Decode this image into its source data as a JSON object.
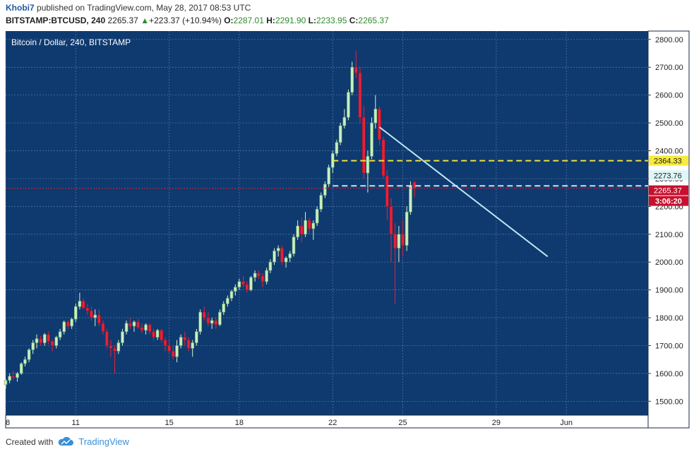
{
  "header": {
    "author": "Khobi7",
    "published": "published on TradingView.com, May 28, 2017 08:53 UTC",
    "symbol": "BITSTAMP:BTCUSD, 240",
    "last": "2265.37",
    "change_arrow": "▲",
    "change": "+223.37 (+10.94%)",
    "o_label": "O:",
    "o_value": "2287.01",
    "h_label": "H:",
    "h_value": "2291.90",
    "l_label": "L:",
    "l_value": "2233.95",
    "c_label": "C:",
    "c_value": "2265.37"
  },
  "legend": "Bitcoin / Dollar, 240, BITSTAMP",
  "footer": {
    "created_with": "Created with",
    "brand": "TradingView",
    "logo_icon": "tradingview-cloud-icon"
  },
  "colors": {
    "background": "#0e3a70",
    "grid": "#5a7aa8",
    "up": "#c8f0c0",
    "down": "#e8213b",
    "trendline": "#bfe8f2",
    "yellow_line": "#f2e33a",
    "white_line": "#d8dde6",
    "red_line": "#d9232e"
  },
  "chart_data": {
    "type": "candlestick",
    "title": "Bitcoin / Dollar, 240, BITSTAMP",
    "xlabel": "",
    "ylabel": "",
    "ylim": [
      1450,
      2830
    ],
    "y_ticks": [
      "2800.00",
      "2700.00",
      "2600.00",
      "2500.00",
      "2400.00",
      "2300.00",
      "2200.00",
      "2100.00",
      "2000.00",
      "1900.00",
      "1800.00",
      "1700.00",
      "1600.00",
      "1500.00"
    ],
    "x_ticks": [
      {
        "label": "8",
        "day": 8
      },
      {
        "label": "11",
        "day": 11
      },
      {
        "label": "15",
        "day": 15
      },
      {
        "label": "18",
        "day": 18
      },
      {
        "label": "22",
        "day": 22
      },
      {
        "label": "25",
        "day": 25
      },
      {
        "label": "29",
        "day": 29
      },
      {
        "label": "Jun",
        "day": 32
      }
    ],
    "x_range_days": [
      8,
      35.5
    ],
    "candle_width_days": 0.12,
    "candles_d_o_h_l_c": [
      [
        8.0,
        1560,
        1580,
        1545,
        1575
      ],
      [
        8.17,
        1575,
        1600,
        1565,
        1590
      ],
      [
        8.33,
        1590,
        1610,
        1575,
        1585
      ],
      [
        8.5,
        1585,
        1605,
        1570,
        1600
      ],
      [
        8.67,
        1600,
        1640,
        1595,
        1635
      ],
      [
        8.83,
        1635,
        1660,
        1625,
        1650
      ],
      [
        9.0,
        1650,
        1690,
        1640,
        1685
      ],
      [
        9.17,
        1685,
        1720,
        1670,
        1710
      ],
      [
        9.33,
        1710,
        1740,
        1690,
        1725
      ],
      [
        9.5,
        1725,
        1735,
        1700,
        1710
      ],
      [
        9.67,
        1710,
        1745,
        1700,
        1740
      ],
      [
        9.83,
        1740,
        1750,
        1705,
        1715
      ],
      [
        10.0,
        1715,
        1720,
        1680,
        1700
      ],
      [
        10.17,
        1700,
        1735,
        1690,
        1730
      ],
      [
        10.33,
        1730,
        1760,
        1720,
        1750
      ],
      [
        10.5,
        1750,
        1790,
        1740,
        1785
      ],
      [
        10.67,
        1785,
        1790,
        1760,
        1770
      ],
      [
        10.83,
        1770,
        1800,
        1760,
        1795
      ],
      [
        11.0,
        1795,
        1850,
        1785,
        1840
      ],
      [
        11.17,
        1840,
        1890,
        1830,
        1860
      ],
      [
        11.33,
        1860,
        1870,
        1830,
        1835
      ],
      [
        11.5,
        1835,
        1850,
        1810,
        1825
      ],
      [
        11.67,
        1825,
        1840,
        1790,
        1800
      ],
      [
        11.83,
        1800,
        1830,
        1770,
        1810
      ],
      [
        12.0,
        1810,
        1830,
        1770,
        1780
      ],
      [
        12.17,
        1780,
        1790,
        1740,
        1750
      ],
      [
        12.33,
        1750,
        1760,
        1690,
        1700
      ],
      [
        12.5,
        1700,
        1720,
        1660,
        1690
      ],
      [
        12.67,
        1690,
        1700,
        1600,
        1680
      ],
      [
        12.83,
        1680,
        1720,
        1670,
        1710
      ],
      [
        13.0,
        1710,
        1760,
        1700,
        1750
      ],
      [
        13.17,
        1750,
        1790,
        1740,
        1780
      ],
      [
        13.33,
        1780,
        1800,
        1760,
        1770
      ],
      [
        13.5,
        1770,
        1790,
        1750,
        1785
      ],
      [
        13.67,
        1785,
        1795,
        1760,
        1765
      ],
      [
        13.83,
        1765,
        1780,
        1745,
        1755
      ],
      [
        14.0,
        1755,
        1780,
        1740,
        1775
      ],
      [
        14.17,
        1775,
        1780,
        1740,
        1750
      ],
      [
        14.33,
        1750,
        1760,
        1720,
        1730
      ],
      [
        14.5,
        1730,
        1760,
        1720,
        1755
      ],
      [
        14.67,
        1755,
        1760,
        1710,
        1720
      ],
      [
        14.83,
        1720,
        1730,
        1680,
        1700
      ],
      [
        15.0,
        1700,
        1720,
        1670,
        1680
      ],
      [
        15.17,
        1680,
        1700,
        1650,
        1660
      ],
      [
        15.33,
        1660,
        1720,
        1640,
        1700
      ],
      [
        15.5,
        1700,
        1740,
        1690,
        1730
      ],
      [
        15.67,
        1730,
        1750,
        1700,
        1720
      ],
      [
        15.83,
        1720,
        1730,
        1680,
        1690
      ],
      [
        16.0,
        1690,
        1720,
        1660,
        1710
      ],
      [
        16.17,
        1710,
        1760,
        1700,
        1750
      ],
      [
        16.33,
        1750,
        1830,
        1740,
        1820
      ],
      [
        16.5,
        1820,
        1840,
        1790,
        1800
      ],
      [
        16.67,
        1800,
        1820,
        1770,
        1780
      ],
      [
        16.83,
        1780,
        1800,
        1760,
        1790
      ],
      [
        17.0,
        1790,
        1800,
        1760,
        1775
      ],
      [
        17.17,
        1775,
        1830,
        1770,
        1820
      ],
      [
        17.33,
        1820,
        1860,
        1810,
        1850
      ],
      [
        17.5,
        1850,
        1880,
        1840,
        1870
      ],
      [
        17.67,
        1870,
        1900,
        1860,
        1895
      ],
      [
        17.83,
        1895,
        1920,
        1880,
        1910
      ],
      [
        18.0,
        1910,
        1940,
        1900,
        1930
      ],
      [
        18.17,
        1930,
        1950,
        1910,
        1920
      ],
      [
        18.33,
        1920,
        1930,
        1890,
        1900
      ],
      [
        18.5,
        1900,
        1950,
        1895,
        1945
      ],
      [
        18.67,
        1945,
        1970,
        1930,
        1960
      ],
      [
        18.83,
        1960,
        1970,
        1940,
        1950
      ],
      [
        19.0,
        1950,
        1960,
        1910,
        1930
      ],
      [
        19.17,
        1930,
        1980,
        1920,
        1970
      ],
      [
        19.33,
        1970,
        2010,
        1960,
        2000
      ],
      [
        19.5,
        2000,
        2050,
        1990,
        2040
      ],
      [
        19.67,
        2040,
        2060,
        2020,
        2050
      ],
      [
        19.83,
        2050,
        2060,
        1990,
        2000
      ],
      [
        20.0,
        2000,
        2020,
        1980,
        2015
      ],
      [
        20.17,
        2015,
        2040,
        2000,
        2030
      ],
      [
        20.33,
        2030,
        2100,
        2020,
        2090
      ],
      [
        20.5,
        2090,
        2150,
        2080,
        2130
      ],
      [
        20.67,
        2130,
        2160,
        2070,
        2100
      ],
      [
        20.83,
        2100,
        2180,
        2090,
        2150
      ],
      [
        21.0,
        2150,
        2160,
        2100,
        2120
      ],
      [
        21.17,
        2120,
        2150,
        2080,
        2140
      ],
      [
        21.33,
        2140,
        2200,
        2130,
        2190
      ],
      [
        21.5,
        2190,
        2250,
        2180,
        2240
      ],
      [
        21.67,
        2240,
        2290,
        2230,
        2280
      ],
      [
        21.83,
        2280,
        2350,
        2270,
        2340
      ],
      [
        22.0,
        2340,
        2400,
        2320,
        2390
      ],
      [
        22.17,
        2390,
        2440,
        2380,
        2430
      ],
      [
        22.33,
        2430,
        2500,
        2420,
        2490
      ],
      [
        22.5,
        2490,
        2550,
        2480,
        2520
      ],
      [
        22.67,
        2520,
        2620,
        2510,
        2610
      ],
      [
        22.83,
        2610,
        2720,
        2600,
        2700
      ],
      [
        23.0,
        2700,
        2760,
        2660,
        2680
      ],
      [
        23.17,
        2680,
        2700,
        2500,
        2520
      ],
      [
        23.33,
        2520,
        2560,
        2300,
        2320
      ],
      [
        23.5,
        2320,
        2400,
        2250,
        2380
      ],
      [
        23.67,
        2380,
        2520,
        2370,
        2500
      ],
      [
        23.83,
        2500,
        2600,
        2480,
        2550
      ],
      [
        24.0,
        2550,
        2560,
        2420,
        2440
      ],
      [
        24.17,
        2440,
        2450,
        2300,
        2310
      ],
      [
        24.33,
        2310,
        2330,
        2150,
        2200
      ],
      [
        24.5,
        2200,
        2230,
        2000,
        2100
      ],
      [
        24.67,
        2100,
        2140,
        1850,
        2050
      ],
      [
        24.83,
        2050,
        2130,
        2000,
        2100
      ],
      [
        25.0,
        2100,
        2150,
        2020,
        2060
      ],
      [
        25.17,
        2060,
        2200,
        2040,
        2180
      ],
      [
        25.33,
        2180,
        2290,
        2170,
        2275
      ],
      [
        25.5,
        2287.01,
        2291.9,
        2233.95,
        2265.37
      ]
    ],
    "levels": [
      {
        "name": "",
        "label": "2364.33",
        "value": 2364.33,
        "style": "yellow-dashed"
      },
      {
        "name": "",
        "label": "2273.76",
        "value": 2273.76,
        "style": "white-dashed"
      },
      {
        "name": "",
        "label": "2265.37",
        "value": 2265.37,
        "style": "red-dotted"
      }
    ],
    "countdown": "3:06:20",
    "trendline": {
      "from_day": 24.0,
      "from_value": 2485,
      "to_day": 31.2,
      "to_value": 2020
    }
  }
}
